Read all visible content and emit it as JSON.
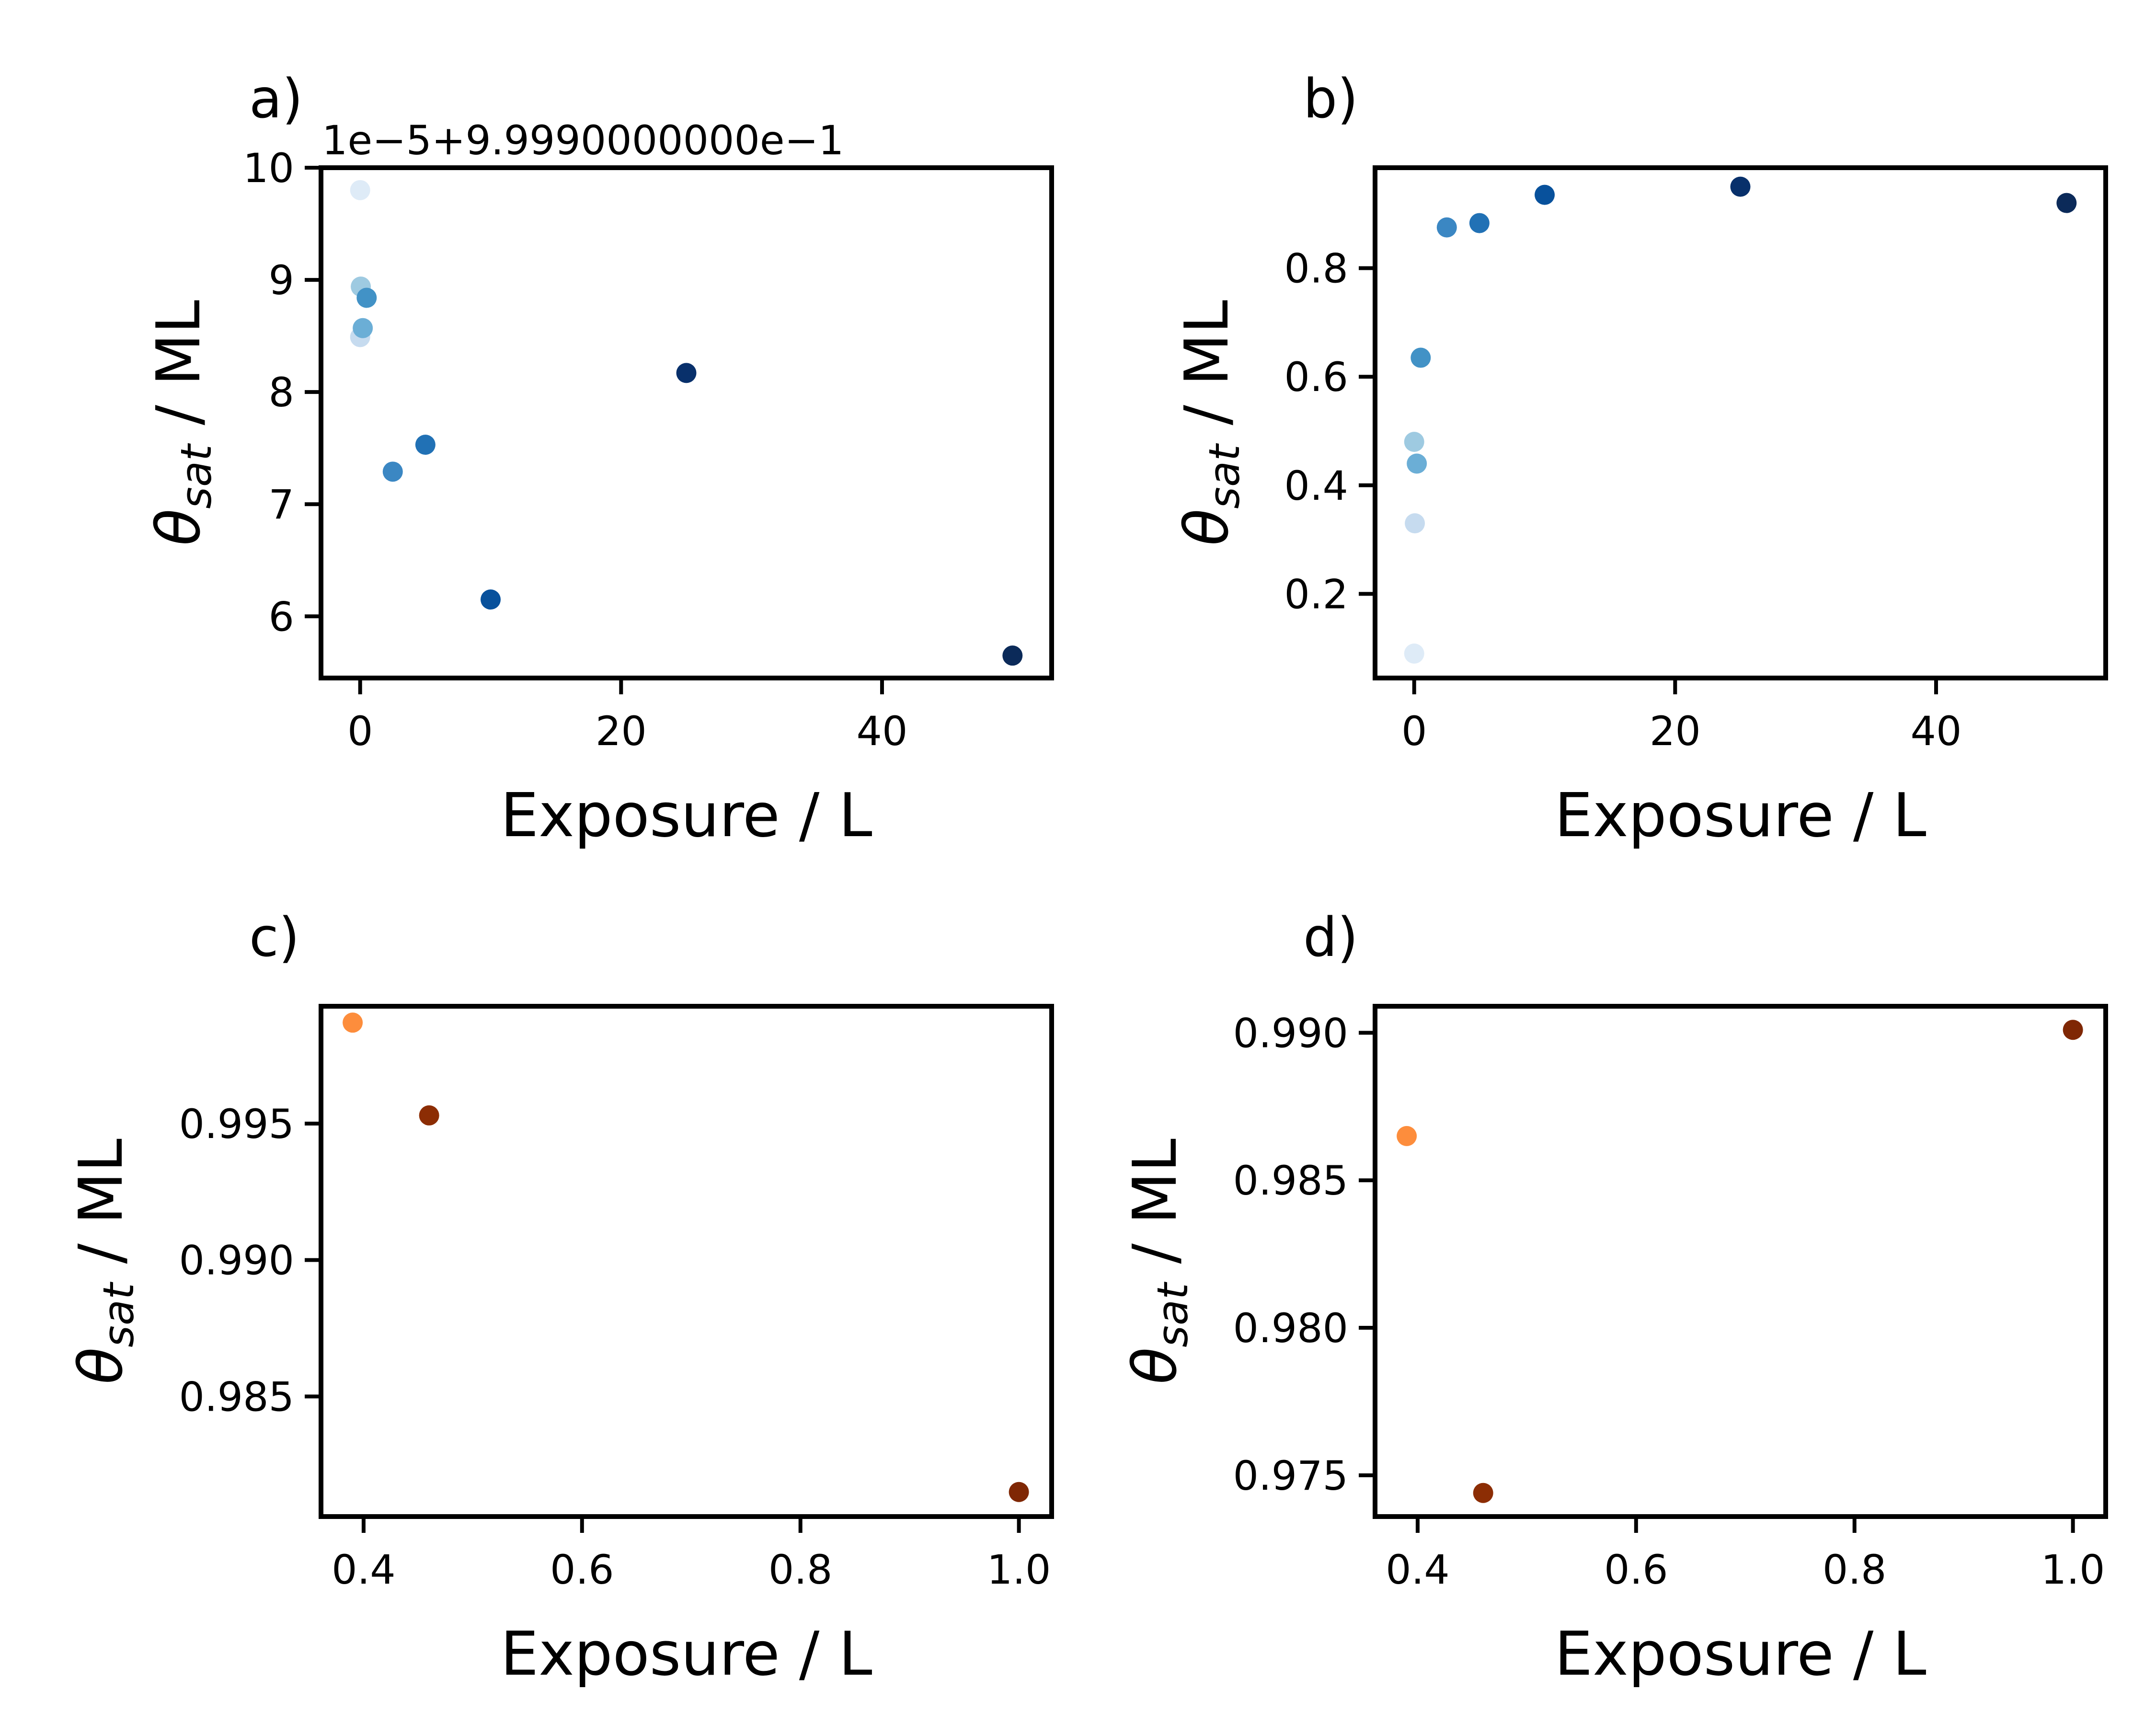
{
  "chart_data": [
    {
      "panel_label": "a)",
      "type": "scatter",
      "xlabel": "Exposure / L",
      "ylabel_main": "θ",
      "ylabel_sub": "sat",
      "ylabel_tail": " / ML",
      "offset_text": "1e−5+9.9990000000e−1",
      "xlim": [
        -3,
        53
      ],
      "ylim": [
        5.45,
        10
      ],
      "xticks": [
        0,
        20,
        40
      ],
      "xtick_labels": [
        "0",
        "20",
        "40"
      ],
      "yticks": [
        6,
        7,
        8,
        9,
        10
      ],
      "ytick_labels": [
        "6",
        "7",
        "8",
        "9",
        "10"
      ],
      "points": [
        {
          "x": 0.0,
          "y": 9.8,
          "color": "#deebf7"
        },
        {
          "x": 0.0,
          "y": 8.49,
          "color": "#c6dbef"
        },
        {
          "x": 0.05,
          "y": 8.94,
          "color": "#9ecae1"
        },
        {
          "x": 0.2,
          "y": 8.57,
          "color": "#6baed6"
        },
        {
          "x": 0.5,
          "y": 8.84,
          "color": "#4292c6"
        },
        {
          "x": 2.5,
          "y": 7.29,
          "color": "#3b87c3"
        },
        {
          "x": 5.0,
          "y": 7.53,
          "color": "#2171b5"
        },
        {
          "x": 10.0,
          "y": 6.15,
          "color": "#08519c"
        },
        {
          "x": 25.0,
          "y": 8.17,
          "color": "#08306b"
        },
        {
          "x": 50.0,
          "y": 5.65,
          "color": "#0b2a59"
        }
      ]
    },
    {
      "panel_label": "b)",
      "type": "scatter",
      "xlabel": "Exposure / L",
      "ylabel_main": "θ",
      "ylabel_sub": "sat",
      "ylabel_tail": " / ML",
      "xlim": [
        -3,
        53
      ],
      "ylim": [
        0.045,
        0.985
      ],
      "xticks": [
        0,
        20,
        40
      ],
      "xtick_labels": [
        "0",
        "20",
        "40"
      ],
      "yticks": [
        0.2,
        0.4,
        0.6,
        0.8
      ],
      "ytick_labels": [
        "0.2",
        "0.4",
        "0.6",
        "0.8"
      ],
      "points": [
        {
          "x": 0.0,
          "y": 0.09,
          "color": "#deebf7"
        },
        {
          "x": 0.05,
          "y": 0.33,
          "color": "#c6dbef"
        },
        {
          "x": 0.0,
          "y": 0.48,
          "color": "#9ecae1"
        },
        {
          "x": 0.2,
          "y": 0.44,
          "color": "#6baed6"
        },
        {
          "x": 0.5,
          "y": 0.635,
          "color": "#4292c6"
        },
        {
          "x": 2.5,
          "y": 0.875,
          "color": "#3b87c3"
        },
        {
          "x": 5.0,
          "y": 0.883,
          "color": "#2171b5"
        },
        {
          "x": 10.0,
          "y": 0.935,
          "color": "#08519c"
        },
        {
          "x": 25.0,
          "y": 0.95,
          "color": "#08306b"
        },
        {
          "x": 50.0,
          "y": 0.92,
          "color": "#0b2a59"
        }
      ]
    },
    {
      "panel_label": "c)",
      "type": "scatter",
      "xlabel": "Exposure / L",
      "ylabel_main": "θ",
      "ylabel_sub": "sat",
      "ylabel_tail": " / ML",
      "xlim": [
        0.361,
        1.03
      ],
      "ylim": [
        0.9806,
        0.9993
      ],
      "xticks": [
        0.4,
        0.6,
        0.8,
        1.0
      ],
      "xtick_labels": [
        "0.4",
        "0.6",
        "0.8",
        "1.0"
      ],
      "yticks": [
        0.985,
        0.99,
        0.995
      ],
      "ytick_labels": [
        "0.985",
        "0.990",
        "0.995"
      ],
      "points": [
        {
          "x": 0.39,
          "y": 0.9987,
          "color": "#fd8d3c"
        },
        {
          "x": 0.46,
          "y": 0.9953,
          "color": "#8c2d04"
        },
        {
          "x": 1.0,
          "y": 0.9815,
          "color": "#7f2704"
        }
      ]
    },
    {
      "panel_label": "d)",
      "type": "scatter",
      "xlabel": "Exposure / L",
      "ylabel_main": "θ",
      "ylabel_sub": "sat",
      "ylabel_tail": " / ML",
      "xlim": [
        0.361,
        1.03
      ],
      "ylim": [
        0.9736,
        0.9909
      ],
      "xticks": [
        0.4,
        0.6,
        0.8,
        1.0
      ],
      "xtick_labels": [
        "0.4",
        "0.6",
        "0.8",
        "1.0"
      ],
      "yticks": [
        0.975,
        0.98,
        0.985,
        0.99
      ],
      "ytick_labels": [
        "0.975",
        "0.980",
        "0.985",
        "0.990"
      ],
      "points": [
        {
          "x": 0.39,
          "y": 0.9865,
          "color": "#fd8d3c"
        },
        {
          "x": 0.46,
          "y": 0.9744,
          "color": "#8c2d04"
        },
        {
          "x": 1.0,
          "y": 0.9901,
          "color": "#7f2704"
        }
      ]
    }
  ]
}
